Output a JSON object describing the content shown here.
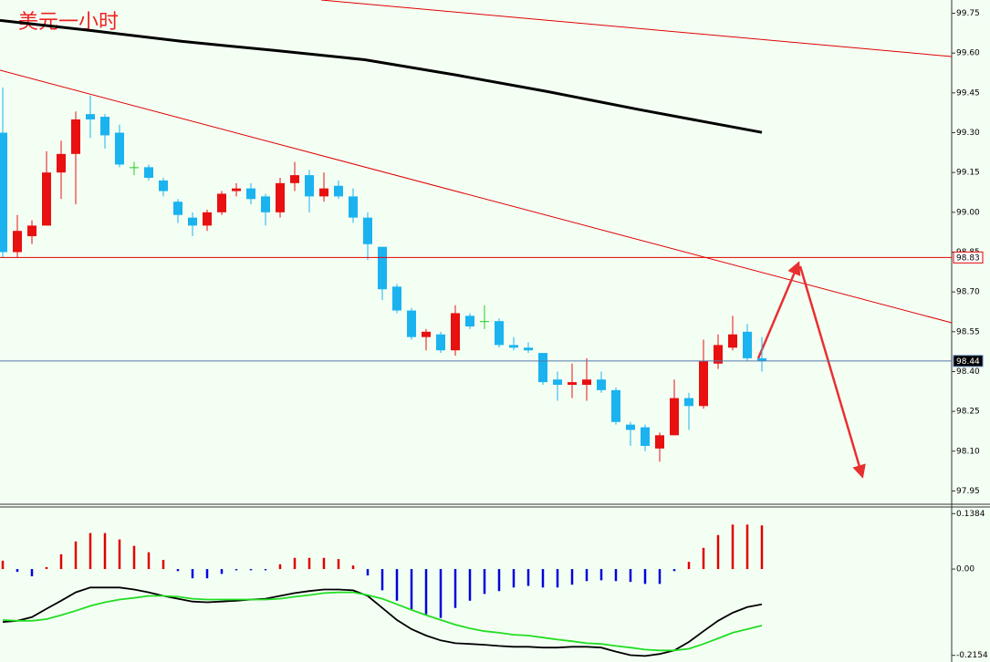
{
  "title": "美元一小时",
  "chart_data": [
    {
      "type": "candlestick",
      "up_color": "#e81010",
      "down_color": "#1ab3f0",
      "doji_color": "#22cc22",
      "ylim": [
        97.9,
        99.8
      ],
      "yticks": [
        99.75,
        {
          "value": 99.6,
          "label": "99.60"
        },
        99.45,
        {
          "value": 99.3,
          "label": "99.30"
        },
        99.15,
        {
          "value": 99,
          "label": "99.00"
        },
        98.85,
        {
          "value": 98.7,
          "label": "98.70"
        },
        98.55,
        {
          "value": 98.4,
          "label": "98.40"
        },
        98.25,
        {
          "value": 98.1,
          "label": "98.10"
        },
        97.95
      ],
      "open": [
        99.3,
        98.85,
        98.91,
        98.95,
        99.15,
        99.22,
        99.37,
        99.36,
        99.3,
        99.17,
        99.17,
        99.12,
        99.04,
        98.98,
        98.95,
        99.0,
        99.08,
        99.09,
        99.06,
        99.0,
        99.11,
        99.14,
        99.06,
        99.1,
        99.06,
        98.98,
        98.87,
        98.72,
        98.63,
        98.53,
        98.54,
        98.48,
        98.61,
        98.59,
        98.59,
        98.5,
        98.49,
        98.47,
        98.37,
        98.35,
        98.35,
        98.37,
        98.33,
        98.2,
        98.19,
        98.11,
        98.16,
        98.3,
        98.27,
        98.43,
        98.49,
        98.55,
        98.45
      ],
      "high": [
        99.47,
        98.99,
        98.97,
        99.23,
        99.27,
        99.38,
        99.44,
        99.37,
        99.33,
        99.19,
        99.18,
        99.13,
        99.05,
        99.0,
        99.01,
        99.08,
        99.11,
        99.11,
        99.07,
        99.13,
        99.19,
        99.16,
        99.15,
        99.12,
        99.09,
        99.0,
        98.87,
        98.73,
        98.64,
        98.56,
        98.55,
        98.65,
        98.62,
        98.65,
        98.6,
        98.53,
        98.51,
        98.47,
        98.4,
        98.43,
        98.45,
        98.4,
        98.34,
        98.21,
        98.2,
        98.17,
        98.37,
        98.32,
        98.52,
        98.54,
        98.61,
        98.58,
        98.53
      ],
      "low": [
        98.83,
        98.83,
        98.88,
        98.95,
        99.05,
        99.03,
        99.28,
        99.24,
        99.17,
        99.14,
        99.12,
        99.06,
        98.96,
        98.91,
        98.93,
        98.99,
        99.06,
        99.03,
        98.95,
        98.98,
        99.08,
        99.0,
        99.04,
        99.05,
        98.96,
        98.82,
        98.67,
        98.62,
        98.52,
        98.48,
        98.47,
        98.46,
        98.56,
        98.56,
        98.49,
        98.48,
        98.47,
        98.35,
        98.29,
        98.3,
        98.29,
        98.32,
        98.2,
        98.12,
        98.1,
        98.06,
        98.16,
        98.18,
        98.26,
        98.41,
        98.48,
        98.44,
        98.4
      ],
      "close": [
        98.85,
        98.93,
        98.95,
        99.15,
        99.22,
        99.35,
        99.35,
        99.29,
        99.18,
        99.17,
        99.13,
        99.08,
        98.99,
        98.95,
        99.0,
        99.07,
        99.09,
        99.05,
        99.0,
        99.11,
        99.14,
        99.06,
        99.09,
        99.06,
        98.98,
        98.88,
        98.71,
        98.63,
        98.53,
        98.55,
        98.48,
        98.62,
        98.57,
        98.59,
        98.5,
        98.49,
        98.48,
        98.36,
        98.35,
        98.36,
        98.37,
        98.33,
        98.21,
        98.18,
        98.12,
        98.16,
        98.3,
        98.27,
        98.44,
        98.5,
        98.54,
        98.45,
        98.44
      ],
      "moving_average": {
        "color": "#000000",
        "x": [
          -0.19,
          6.06,
          12.3,
          18.6,
          24.8,
          31.1,
          37.3,
          43.6,
          52
        ],
        "values": [
          99.723,
          99.685,
          99.644,
          99.61,
          99.575,
          99.517,
          99.455,
          99.387,
          99.301
        ]
      },
      "levels": [
        {
          "value": 98.83,
          "color": "#e00000"
        },
        {
          "value": 98.44,
          "color": "#5577aa"
        }
      ]
    },
    {
      "type": "macd",
      "positive_color": "#e00000",
      "negative_color": "#0000dd",
      "ylim": [
        -0.232,
        0.155
      ],
      "yticks": [
        0.1384,
        {
          "value": 0,
          "label": "0.00"
        },
        -0.2154
      ],
      "histogram": [
        0.021,
        -0.007,
        -0.018,
        0.005,
        0.037,
        0.069,
        0.09,
        0.09,
        0.074,
        0.058,
        0.042,
        0.023,
        -0.005,
        -0.023,
        -0.023,
        -0.012,
        -0.003,
        -0.003,
        -0.003,
        0.012,
        0.028,
        0.028,
        0.028,
        0.025,
        0.009,
        -0.016,
        -0.053,
        -0.079,
        -0.102,
        -0.113,
        -0.122,
        -0.097,
        -0.079,
        -0.062,
        -0.055,
        -0.046,
        -0.042,
        -0.046,
        -0.046,
        -0.039,
        -0.03,
        -0.028,
        -0.03,
        -0.032,
        -0.037,
        -0.037,
        -0.005,
        0.018,
        0.053,
        0.085,
        0.111,
        0.111,
        0.109
      ],
      "series": [
        {
          "color": "#000000",
          "values": [
            -0.132,
            -0.129,
            -0.12,
            -0.099,
            -0.079,
            -0.058,
            -0.046,
            -0.046,
            -0.046,
            -0.051,
            -0.058,
            -0.067,
            -0.074,
            -0.081,
            -0.083,
            -0.081,
            -0.079,
            -0.076,
            -0.074,
            -0.067,
            -0.06,
            -0.055,
            -0.051,
            -0.051,
            -0.053,
            -0.067,
            -0.097,
            -0.127,
            -0.15,
            -0.166,
            -0.178,
            -0.185,
            -0.187,
            -0.189,
            -0.192,
            -0.194,
            -0.194,
            -0.196,
            -0.196,
            -0.194,
            -0.194,
            -0.196,
            -0.206,
            -0.215,
            -0.217,
            -0.212,
            -0.203,
            -0.182,
            -0.155,
            -0.129,
            -0.109,
            -0.095,
            -0.088
          ]
        },
        {
          "color": "#22dd22",
          "values": [
            -0.127,
            -0.129,
            -0.129,
            -0.125,
            -0.115,
            -0.104,
            -0.092,
            -0.083,
            -0.076,
            -0.072,
            -0.067,
            -0.067,
            -0.069,
            -0.074,
            -0.076,
            -0.076,
            -0.076,
            -0.076,
            -0.076,
            -0.074,
            -0.069,
            -0.065,
            -0.06,
            -0.058,
            -0.058,
            -0.065,
            -0.074,
            -0.088,
            -0.102,
            -0.115,
            -0.127,
            -0.139,
            -0.148,
            -0.155,
            -0.159,
            -0.164,
            -0.166,
            -0.171,
            -0.176,
            -0.18,
            -0.185,
            -0.187,
            -0.192,
            -0.196,
            -0.201,
            -0.203,
            -0.203,
            -0.199,
            -0.187,
            -0.173,
            -0.159,
            -0.15,
            -0.141
          ]
        }
      ]
    }
  ]
}
